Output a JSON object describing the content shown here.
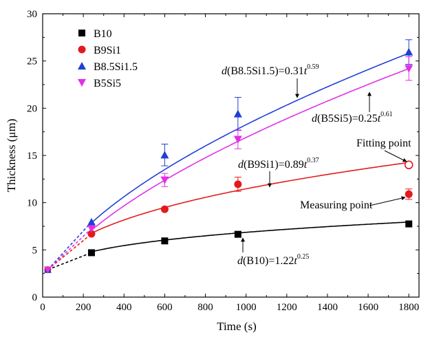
{
  "chart_data": {
    "type": "scatter",
    "xlabel": "Time (s)",
    "ylabel": "Thickness (μm)",
    "xlim": [
      0,
      1850
    ],
    "ylim": [
      0,
      30
    ],
    "xticks": [
      0,
      200,
      400,
      600,
      800,
      1000,
      1200,
      1400,
      1600,
      1800
    ],
    "yticks": [
      0,
      5,
      10,
      15,
      20,
      25,
      30
    ],
    "grid": false,
    "legend_position": "top-left",
    "series": [
      {
        "name": "B10",
        "color": "#000000",
        "marker": "square",
        "x": [
          240,
          600,
          960,
          1800
        ],
        "y": [
          4.7,
          5.95,
          6.65,
          7.75
        ],
        "err": [
          0.15,
          0.25,
          0.3,
          0.2
        ],
        "origin": [
          25,
          2.9
        ],
        "fit": {
          "a": 1.22,
          "b": 0.25
        }
      },
      {
        "name": "B9Si1",
        "color": "#e31a1c",
        "marker": "circle",
        "x": [
          240,
          600,
          960,
          1800
        ],
        "y": [
          6.7,
          9.3,
          11.95,
          10.9
        ],
        "err": [
          0.2,
          0.2,
          0.75,
          0.55
        ],
        "origin": [
          25,
          2.9
        ],
        "fit": {
          "a": 0.89,
          "b": 0.37
        }
      },
      {
        "name": "B8.5Si1.5",
        "color": "#1f3fd6",
        "marker": "triangle-up",
        "x": [
          240,
          600,
          960,
          1800
        ],
        "y": [
          7.95,
          15.05,
          19.4,
          25.95
        ],
        "err": [
          0.2,
          1.15,
          1.75,
          1.3
        ],
        "origin": [
          25,
          2.9
        ],
        "fit": {
          "a": 0.31,
          "b": 0.59
        }
      },
      {
        "name": "B5Si5",
        "color": "#e030e6",
        "marker": "triangle-down",
        "x": [
          240,
          600,
          960,
          1800
        ],
        "y": [
          7.25,
          12.4,
          16.7,
          24.2
        ],
        "err": [
          0.2,
          0.7,
          1.0,
          1.25
        ],
        "origin": [
          25,
          2.9
        ],
        "fit": {
          "a": 0.25,
          "b": 0.61
        }
      }
    ],
    "fitting_point": {
      "x": 1800,
      "y": 14.0
    },
    "annotations": {
      "b85": {
        "pre": "d",
        "mid": "(B8.5Si1.5)=0.31",
        "t": "t",
        "exp": "0.59"
      },
      "b5si5": {
        "pre": "d",
        "mid": "(B5Si5)=0.25",
        "t": "t",
        "exp": "0.61"
      },
      "b9si1": {
        "pre": "d",
        "mid": "(B9Si1)=0.89",
        "t": "t",
        "exp": "0.37"
      },
      "b10": {
        "pre": "d",
        "mid": "(B10)=1.22",
        "t": "t",
        "exp": "0.25"
      },
      "fitting_point_label": "Fitting point",
      "measuring_point_label": "Measuring point"
    }
  }
}
